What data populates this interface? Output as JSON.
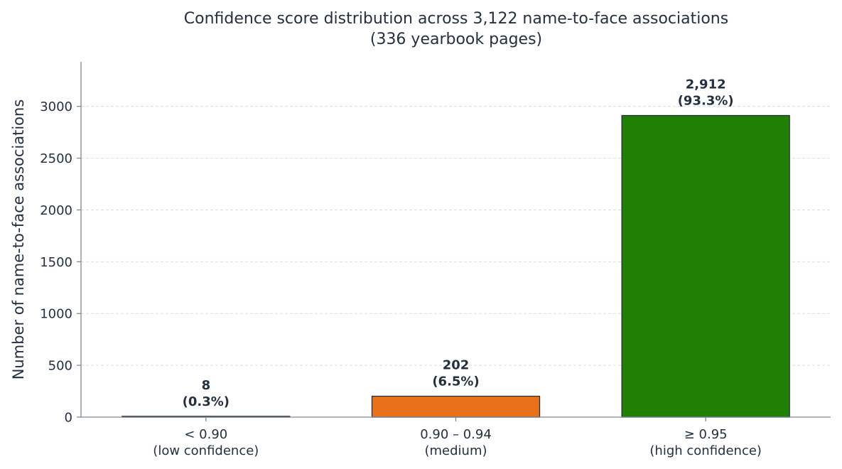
{
  "chart_data": {
    "type": "bar",
    "title_lines": [
      "Confidence score distribution across 3,122 name-to-face associations",
      "(336 yearbook pages)"
    ],
    "xlabel": "",
    "ylabel": "Number of name-to-face associations",
    "ylim": [
      0,
      3430
    ],
    "yticks": [
      0,
      500,
      1000,
      1500,
      2000,
      2500,
      3000
    ],
    "grid": true,
    "categories": [
      [
        "< 0.90",
        "(low confidence)"
      ],
      [
        "0.90 – 0.94",
        "(medium)"
      ],
      [
        "≥ 0.95",
        "(high confidence)"
      ]
    ],
    "values": [
      8,
      202,
      2912
    ],
    "colors": [
      "#2b8a3e",
      "#e8711a",
      "#1f8003"
    ],
    "data_labels": [
      [
        "8",
        "(0.3%)"
      ],
      [
        "202",
        "(6.5%)"
      ],
      [
        "2,912",
        "(93.3%)"
      ]
    ]
  }
}
